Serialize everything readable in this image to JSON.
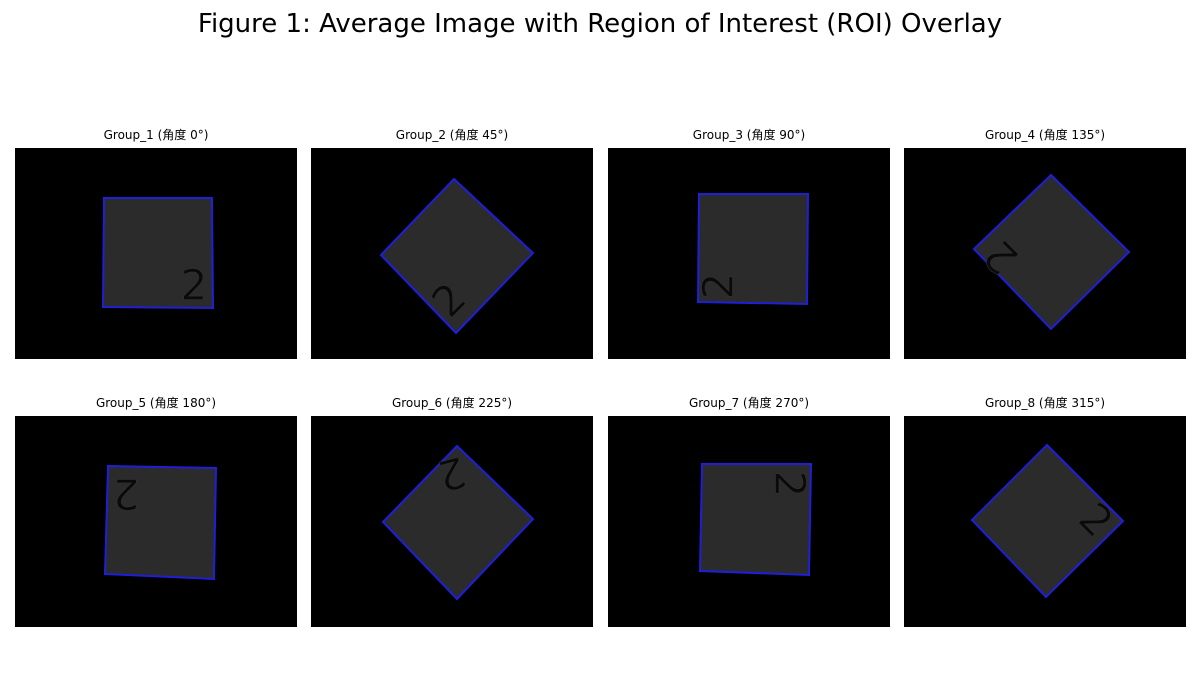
{
  "figure": {
    "title": "Figure 1: Average Image with Region of Interest (ROI) Overlay"
  },
  "colors": {
    "background": "#000000",
    "roi_outline": "#1f1fd8",
    "specimen_fill": "#2b2b2b",
    "marking": "#0a0a0a"
  },
  "panels": [
    {
      "title": "Group_1 (角度 0°)",
      "marking": "2",
      "angle_deg": 0
    },
    {
      "title": "Group_2 (角度 45°)",
      "marking": "2",
      "angle_deg": 45
    },
    {
      "title": "Group_3 (角度 90°)",
      "marking": "2",
      "angle_deg": 90
    },
    {
      "title": "Group_4 (角度 135°)",
      "marking": "2",
      "angle_deg": 135
    },
    {
      "title": "Group_5 (角度 180°)",
      "marking": "2",
      "angle_deg": 180
    },
    {
      "title": "Group_6 (角度 225°)",
      "marking": "2",
      "angle_deg": 225
    },
    {
      "title": "Group_7 (角度 270°)",
      "marking": "2",
      "angle_deg": 270
    },
    {
      "title": "Group_8 (角度 315°)",
      "marking": "2",
      "angle_deg": 315
    }
  ]
}
